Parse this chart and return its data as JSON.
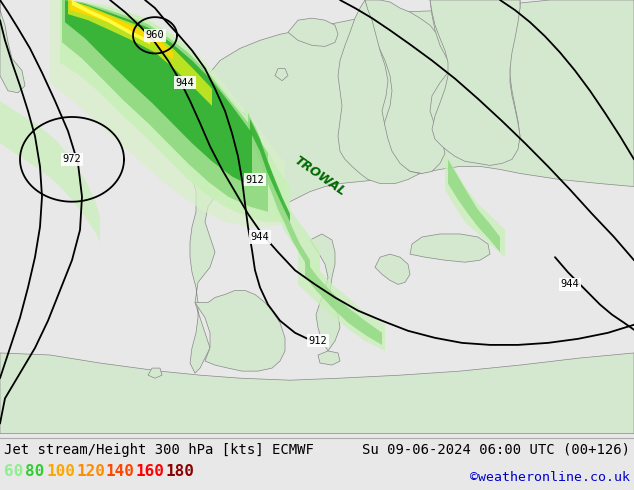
{
  "title_left": "Jet stream/Height 300 hPa [kts] ECMWF",
  "title_right": "Su 09-06-2024 06:00 UTC (00+126)",
  "credit": "©weatheronline.co.uk",
  "legend_items": [
    {
      "label": "60",
      "color": "#90ee90"
    },
    {
      "label": "80",
      "color": "#32cd32"
    },
    {
      "label": "100",
      "color": "#ffa500"
    },
    {
      "label": "120",
      "color": "#ff8c00"
    },
    {
      "label": "140",
      "color": "#ff4500"
    },
    {
      "label": "160",
      "color": "#ff0000"
    },
    {
      "label": "180",
      "color": "#8b0000"
    }
  ],
  "ocean_color": "#c8d8e8",
  "land_color": "#d4e8d0",
  "coast_color": "#888888",
  "contour_color": "#000000",
  "jet_colors": [
    "#c8f0c0",
    "#90d890",
    "#40b840",
    "#20a020",
    "#ffd700",
    "#ffff00"
  ],
  "credit_color": "#0000cc",
  "figsize": [
    6.34,
    4.9
  ],
  "dpi": 100
}
